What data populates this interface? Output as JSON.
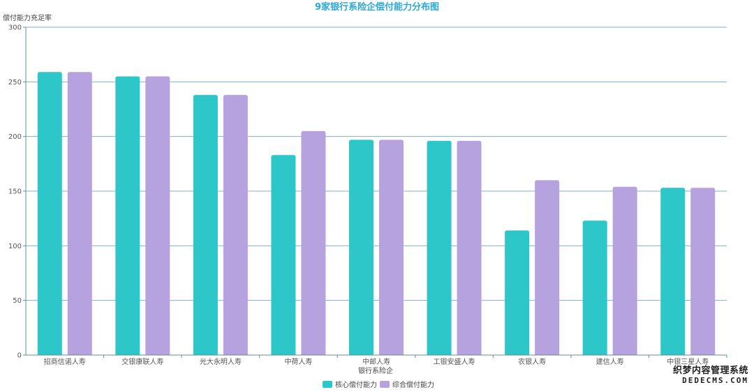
{
  "chart_data": {
    "type": "bar",
    "title": "9家银行系险企偿付能力分布图",
    "xlabel": "银行系险企",
    "ylabel": "偿付能力充足率",
    "ylim": [
      0,
      300
    ],
    "yticks": [
      0,
      50,
      100,
      150,
      200,
      250,
      300
    ],
    "grid": true,
    "legend_position": "bottom",
    "categories": [
      "招商信诺人寿",
      "交银康联人寿",
      "光大永明人寿",
      "中荷人寿",
      "中邮人寿",
      "工银安盛人寿",
      "农银人寿",
      "建信人寿",
      "中银三星人寿"
    ],
    "series": [
      {
        "name": "核心偿付能力",
        "color": "#2ec7c9",
        "values": [
          259,
          255,
          238,
          183,
          197,
          196,
          114,
          123,
          153
        ]
      },
      {
        "name": "综合偿付能力",
        "color": "#b6a2de",
        "values": [
          259,
          255,
          238,
          205,
          197,
          196,
          160,
          154,
          153
        ]
      }
    ]
  },
  "watermark": {
    "line1": "织梦内容管理系统",
    "line2": "DEDECMS.COM"
  }
}
